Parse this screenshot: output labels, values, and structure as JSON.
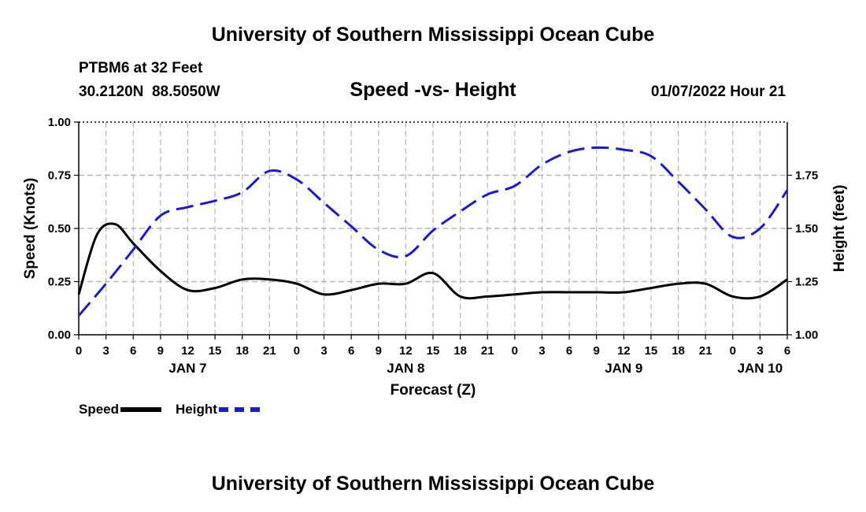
{
  "header": {
    "title": "University of Southern Mississippi Ocean Cube",
    "station": "PTBM6 at 32 Feet",
    "coordinates": "30.2120N  88.5050W",
    "subtitle": "Speed -vs- Height",
    "timestamp": "01/07/2022 Hour 21"
  },
  "footer": {
    "title": "University of Southern Mississippi Ocean Cube"
  },
  "legend": {
    "speed_label": "Speed",
    "height_label": "Height"
  },
  "chart_data": {
    "type": "line",
    "xlabel": "Forecast (Z)",
    "ylabel": "Speed (Knots)",
    "y2label": "Height (feet)",
    "x_tick_labels": [
      "0",
      "3",
      "6",
      "9",
      "12",
      "15",
      "18",
      "21",
      "0",
      "3",
      "6",
      "9",
      "12",
      "15",
      "18",
      "21",
      "0",
      "3",
      "6",
      "9",
      "12",
      "15",
      "18",
      "21",
      "0",
      "3",
      "6"
    ],
    "day_labels": [
      {
        "label": "JAN 7",
        "hour": 12
      },
      {
        "label": "JAN 8",
        "hour": 36
      },
      {
        "label": "JAN 9",
        "hour": 60
      },
      {
        "label": "JAN 10",
        "hour": 75
      }
    ],
    "xlim": [
      0,
      78
    ],
    "ylim": [
      0,
      1
    ],
    "y_ticks": [
      "0.00",
      "0.25",
      "0.50",
      "0.75",
      "1.00"
    ],
    "y2lim": [
      1.0,
      2.0
    ],
    "y2_ticks": [
      "1.00",
      "1.25",
      "1.50",
      "1.75"
    ],
    "grid": true,
    "series": [
      {
        "name": "Speed",
        "axis": "left",
        "color": "#000000",
        "style": "solid",
        "x": [
          0,
          2,
          4,
          6,
          9,
          12,
          15,
          18,
          21,
          24,
          27,
          30,
          33,
          36,
          39,
          42,
          45,
          48,
          51,
          54,
          57,
          60,
          63,
          66,
          69,
          72,
          75,
          78
        ],
        "values": [
          0.19,
          0.47,
          0.52,
          0.43,
          0.3,
          0.21,
          0.22,
          0.26,
          0.26,
          0.24,
          0.19,
          0.21,
          0.24,
          0.24,
          0.29,
          0.18,
          0.18,
          0.19,
          0.2,
          0.2,
          0.2,
          0.2,
          0.22,
          0.24,
          0.24,
          0.18,
          0.18,
          0.26
        ]
      },
      {
        "name": "Height",
        "axis": "right",
        "color": "#1a1ad0",
        "style": "dashed",
        "x": [
          0,
          3,
          6,
          9,
          12,
          15,
          18,
          21,
          24,
          27,
          30,
          33,
          36,
          39,
          42,
          45,
          48,
          51,
          54,
          57,
          60,
          63,
          66,
          69,
          72,
          75,
          78
        ],
        "values": [
          1.09,
          1.24,
          1.4,
          1.56,
          1.6,
          1.63,
          1.67,
          1.77,
          1.73,
          1.62,
          1.51,
          1.4,
          1.37,
          1.49,
          1.58,
          1.66,
          1.7,
          1.8,
          1.86,
          1.88,
          1.87,
          1.84,
          1.72,
          1.59,
          1.46,
          1.5,
          1.68
        ]
      }
    ]
  }
}
